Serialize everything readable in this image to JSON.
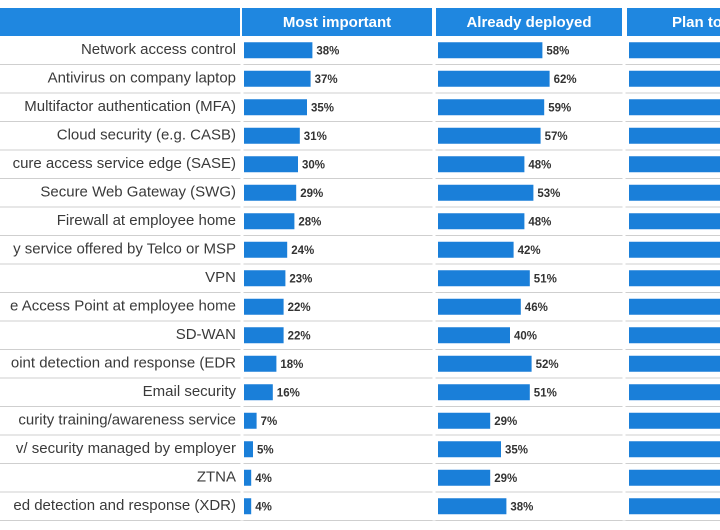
{
  "chart_data": {
    "type": "bar",
    "categories": [
      "Network access control",
      "Antivirus on company laptop",
      "Multifactor authentication (MFA)",
      "Cloud security (e.g. CASB)",
      "cure access service edge (SASE)",
      "Secure Web Gateway (SWG)",
      "Firewall at employee home",
      "y service offered by Telco or MSP",
      "VPN",
      "e Access Point at employee home",
      "SD-WAN",
      "oint detection and response (EDR",
      "Email security",
      "curity training/awareness service",
      "v/ security managed by employer",
      "ZTNA",
      "ed detection and response (XDR)"
    ],
    "series": [
      {
        "name": "Most important",
        "color": "#1a7fd9",
        "values": [
          38,
          37,
          35,
          31,
          30,
          29,
          28,
          24,
          23,
          22,
          22,
          18,
          16,
          7,
          5,
          4,
          4
        ],
        "value_labels": [
          "38%",
          "37%",
          "35%",
          "31%",
          "30%",
          "29%",
          "28%",
          "24%",
          "23%",
          "22%",
          "22%",
          "18%",
          "16%",
          "7%",
          "5%",
          "4%",
          "4%"
        ]
      },
      {
        "name": "Already deployed",
        "color": "#1a7fd9",
        "values": [
          58,
          62,
          59,
          57,
          48,
          53,
          48,
          42,
          51,
          46,
          40,
          52,
          51,
          29,
          35,
          29,
          38
        ],
        "value_labels": [
          "58%",
          "62%",
          "59%",
          "57%",
          "48%",
          "53%",
          "48%",
          "42%",
          "51%",
          "46%",
          "40%",
          "52%",
          "51%",
          "29%",
          "35%",
          "29%",
          "38%"
        ]
      }
    ],
    "cropped_column": "Plan to",
    "header_color": "#1f87e0"
  }
}
